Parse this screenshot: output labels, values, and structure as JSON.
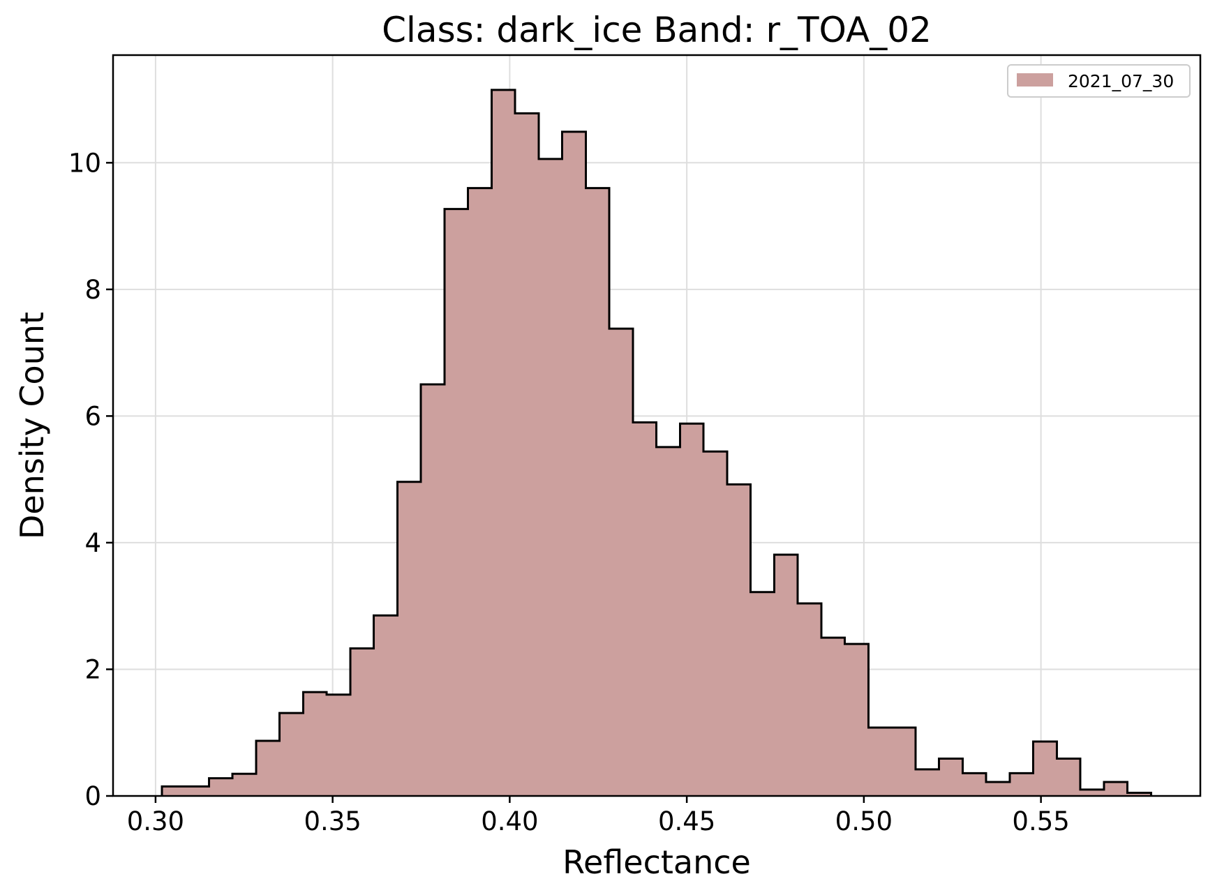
{
  "chart_data": {
    "type": "histogram",
    "title": "Class: dark_ice Band: r_TOA_02",
    "xlabel": "Reflectance",
    "ylabel": "Density Count",
    "xlim": [
      0.288,
      0.595
    ],
    "ylim": [
      0,
      11.7
    ],
    "xticks": [
      0.3,
      0.35,
      0.4,
      0.45,
      0.5,
      0.55
    ],
    "xtick_labels": [
      "0.30",
      "0.35",
      "0.40",
      "0.45",
      "0.50",
      "0.55"
    ],
    "yticks": [
      0,
      2,
      4,
      6,
      8,
      10
    ],
    "ytick_labels": [
      "0",
      "2",
      "4",
      "6",
      "8",
      "10"
    ],
    "grid": true,
    "legend_position": "top-right",
    "series": [
      {
        "name": "2021_07_30",
        "color": "#cca09e",
        "edge_color": "#000000",
        "bin_edges": [
          0.3018,
          0.3084,
          0.3151,
          0.3217,
          0.3284,
          0.335,
          0.3417,
          0.3483,
          0.355,
          0.3616,
          0.3683,
          0.3749,
          0.3816,
          0.3882,
          0.3949,
          0.4015,
          0.4082,
          0.4148,
          0.4215,
          0.4281,
          0.4348,
          0.4414,
          0.4481,
          0.4547,
          0.4614,
          0.468,
          0.4747,
          0.4813,
          0.488,
          0.4946,
          0.5013,
          0.5079,
          0.5146,
          0.5212,
          0.5279,
          0.5345,
          0.5412,
          0.5478,
          0.5545,
          0.5611,
          0.5678,
          0.5744,
          0.5811
        ],
        "values": [
          0.15,
          0.15,
          0.28,
          0.35,
          0.87,
          1.31,
          1.64,
          1.6,
          2.33,
          2.85,
          4.96,
          6.5,
          9.27,
          9.6,
          11.15,
          10.78,
          10.06,
          10.49,
          9.6,
          7.38,
          5.9,
          5.51,
          5.88,
          5.44,
          4.92,
          3.22,
          3.81,
          3.04,
          2.5,
          2.4,
          1.08,
          1.08,
          0.42,
          0.59,
          0.36,
          0.22,
          0.36,
          0.86,
          0.59,
          0.1,
          0.22,
          0.05
        ]
      }
    ]
  }
}
